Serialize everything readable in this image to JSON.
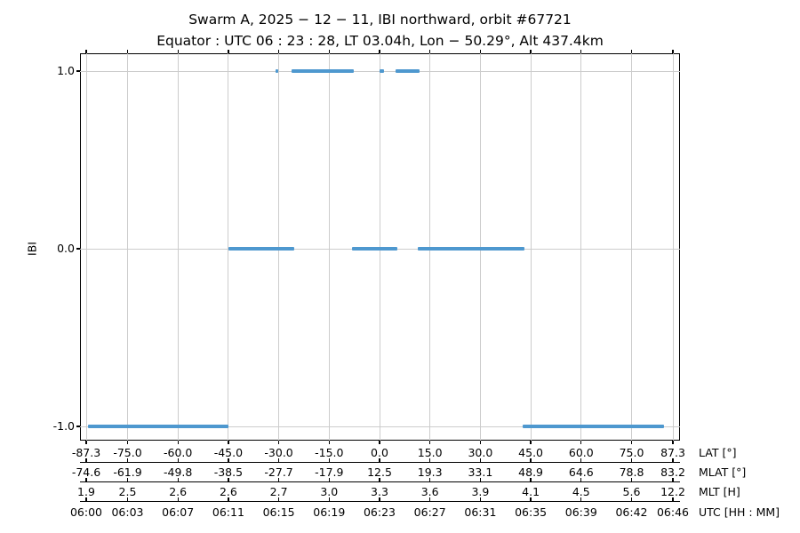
{
  "title": "Swarm A,  2025 − 12 − 11,  IBI northward,  orbit #67721",
  "subtitle": "Equator :  UTC 06 : 23 : 28,  LT 03.04h,  Lon − 50.29°,  Alt 437.4km",
  "chart_data": {
    "type": "line",
    "title": "Swarm A, 2025-12-11, IBI northward, orbit #67721",
    "subtitle": "Equator: UTC 06:23:28, LT 03.04h, Lon -50.29°, Alt 437.4km",
    "ylabel": "IBI",
    "ylim": [
      -1.08,
      1.1
    ],
    "grid": true,
    "line_color": "#4e98cf",
    "grid_color": "#cccccc",
    "spine_color": "#000000",
    "yticks": [
      {
        "value": 1.0,
        "label": "1.0"
      },
      {
        "value": 0.0,
        "label": "0.0"
      },
      {
        "value": -1.0,
        "label": "-1.0"
      }
    ],
    "lat_range": [
      -87.3,
      87.3
    ],
    "tick_lats": [
      -87.3,
      -75.0,
      -60.0,
      -45.0,
      -30.0,
      -15.0,
      0.0,
      15.0,
      30.0,
      45.0,
      60.0,
      75.0,
      87.3
    ],
    "x_axis_rows": [
      {
        "name": "LAT [°]",
        "ticks": [
          "-87.3",
          "-75.0",
          "-60.0",
          "-45.0",
          "-30.0",
          "-15.0",
          "0.0",
          "15.0",
          "30.0",
          "45.0",
          "60.0",
          "75.0",
          "87.3"
        ]
      },
      {
        "name": "MLAT [°]",
        "ticks": [
          "-74.6",
          "-61.9",
          "-49.8",
          "-38.5",
          "-27.7",
          "-17.9",
          "12.5",
          "19.3",
          "33.1",
          "48.9",
          "64.6",
          "78.8",
          "83.2"
        ]
      },
      {
        "name": "MLT [H]",
        "ticks": [
          "1.9",
          "2.5",
          "2.6",
          "2.6",
          "2.7",
          "3.0",
          "3.3",
          "3.6",
          "3.9",
          "4.1",
          "4.5",
          "5.6",
          "12.2"
        ]
      },
      {
        "name": "UTC [HH : MM]",
        "ticks": [
          "06:00",
          "06:03",
          "06:07",
          "06:11",
          "06:15",
          "06:19",
          "06:23",
          "06:27",
          "06:31",
          "06:35",
          "06:39",
          "06:42",
          "06:46"
        ]
      }
    ],
    "segments": [
      {
        "ibi": -1,
        "lat_start": -86.8,
        "lat_end": -45.0
      },
      {
        "ibi": 0,
        "lat_start": -45.0,
        "lat_end": -25.5
      },
      {
        "ibi": 1,
        "lat_start": -31.0,
        "lat_end": -30.2
      },
      {
        "ibi": 1,
        "lat_start": -26.1,
        "lat_end": -7.6
      },
      {
        "ibi": 0,
        "lat_start": -8.1,
        "lat_end": 5.2
      },
      {
        "ibi": 1,
        "lat_start": 0.0,
        "lat_end": 1.3
      },
      {
        "ibi": 1,
        "lat_start": 4.7,
        "lat_end": 12.0
      },
      {
        "ibi": 0,
        "lat_start": 11.5,
        "lat_end": 43.0
      },
      {
        "ibi": -1,
        "lat_start": 42.5,
        "lat_end": 84.7
      }
    ]
  }
}
